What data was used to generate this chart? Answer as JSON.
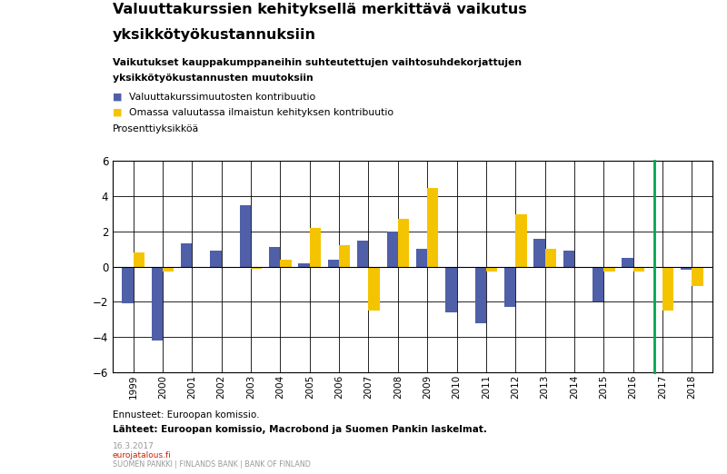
{
  "title_line1": "Valuuttakurssien kehityksellä merkittävä vaikutus",
  "title_line2": "yksikkötyökustannuksiin",
  "subtitle_line1": "Vaikutukset kauppakumppaneihin suhteutettujen vaihtosuhdekorjattujen",
  "subtitle_line2": "yksikkötyökustannusten muutoksiin",
  "legend1": "Valuuttakurssimuutosten kontribuutio",
  "legend2": "Omassa valuutassa ilmaistun kehityksen kontribuutio",
  "ylabel": "Prosenttiyksikköä",
  "footnote1": "Ennusteet: Euroopan komissio.",
  "footnote2": "Lähteet: Euroopan komissio, Macrobond ja Suomen Pankin laskelmat.",
  "footnote3": "16.3.2017",
  "footnote4": "eurojatalous.fi",
  "footnote5": "SUOMEN PANKKI | FINLANDS BANK | BANK OF FINLAND",
  "years": [
    1999,
    2000,
    2001,
    2002,
    2003,
    2004,
    2005,
    2006,
    2007,
    2008,
    2009,
    2010,
    2011,
    2012,
    2013,
    2014,
    2015,
    2016,
    2017,
    2018
  ],
  "blue_values": [
    -2.1,
    -4.2,
    1.3,
    0.9,
    3.5,
    1.1,
    0.2,
    0.4,
    1.5,
    2.0,
    1.0,
    -2.6,
    -3.2,
    -2.3,
    1.6,
    0.9,
    -2.0,
    0.5,
    0.0,
    -0.2
  ],
  "yellow_values": [
    0.8,
    -0.3,
    0.0,
    0.0,
    -0.1,
    0.4,
    2.2,
    1.2,
    -2.5,
    2.7,
    4.5,
    0.0,
    -0.3,
    3.0,
    1.0,
    0.0,
    -0.3,
    -0.3,
    -2.5,
    -1.1
  ],
  "blue_color": "#4f5fa8",
  "yellow_color": "#f5c400",
  "green_line_year_index": 18,
  "green_color": "#00a651",
  "ylim": [
    -6,
    6
  ],
  "yticks": [
    -6,
    -4,
    -2,
    0,
    2,
    4,
    6
  ],
  "background_color": "#ffffff",
  "grid_color": "#000000",
  "bar_width": 0.38
}
